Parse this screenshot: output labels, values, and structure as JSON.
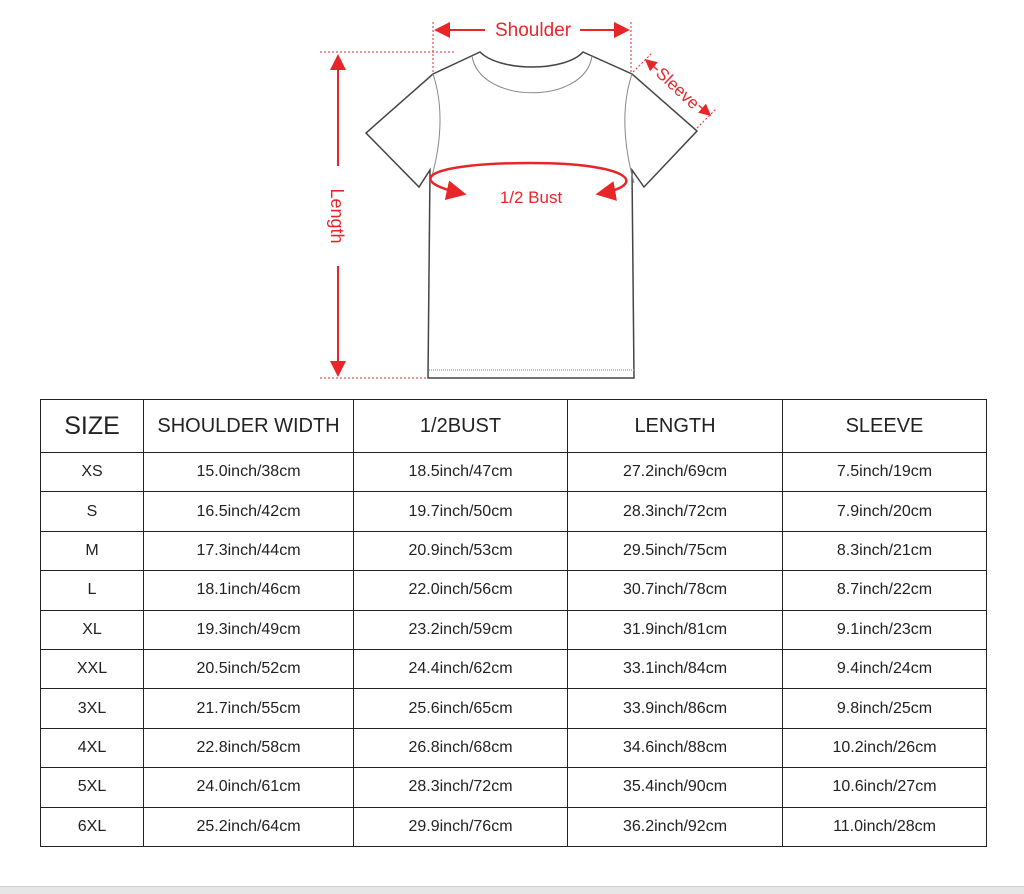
{
  "diagram": {
    "labels": {
      "shoulder": "Shoulder",
      "sleeve": "Sleeve",
      "bust": "1/2 Bust",
      "length": "Length"
    },
    "accent_color": "#e8262a",
    "outline_color": "#444444"
  },
  "table": {
    "headers": [
      "SIZE",
      "SHOULDER WIDTH",
      "1/2BUST",
      "LENGTH",
      "SLEEVE"
    ],
    "rows": [
      [
        "XS",
        "15.0inch/38cm",
        "18.5inch/47cm",
        "27.2inch/69cm",
        "7.5inch/19cm"
      ],
      [
        "S",
        "16.5inch/42cm",
        "19.7inch/50cm",
        "28.3inch/72cm",
        "7.9inch/20cm"
      ],
      [
        "M",
        "17.3inch/44cm",
        "20.9inch/53cm",
        "29.5inch/75cm",
        "8.3inch/21cm"
      ],
      [
        "L",
        "18.1inch/46cm",
        "22.0inch/56cm",
        "30.7inch/78cm",
        "8.7inch/22cm"
      ],
      [
        "XL",
        "19.3inch/49cm",
        "23.2inch/59cm",
        "31.9inch/81cm",
        "9.1inch/23cm"
      ],
      [
        "XXL",
        "20.5inch/52cm",
        "24.4inch/62cm",
        "33.1inch/84cm",
        "9.4inch/24cm"
      ],
      [
        "3XL",
        "21.7inch/55cm",
        "25.6inch/65cm",
        "33.9inch/86cm",
        "9.8inch/25cm"
      ],
      [
        "4XL",
        "22.8inch/58cm",
        "26.8inch/68cm",
        "34.6inch/88cm",
        "10.2inch/26cm"
      ],
      [
        "5XL",
        "24.0inch/61cm",
        "28.3inch/72cm",
        "35.4inch/90cm",
        "10.6inch/27cm"
      ],
      [
        "6XL",
        "25.2inch/64cm",
        "29.9inch/76cm",
        "36.2inch/92cm",
        "11.0inch/28cm"
      ]
    ]
  }
}
